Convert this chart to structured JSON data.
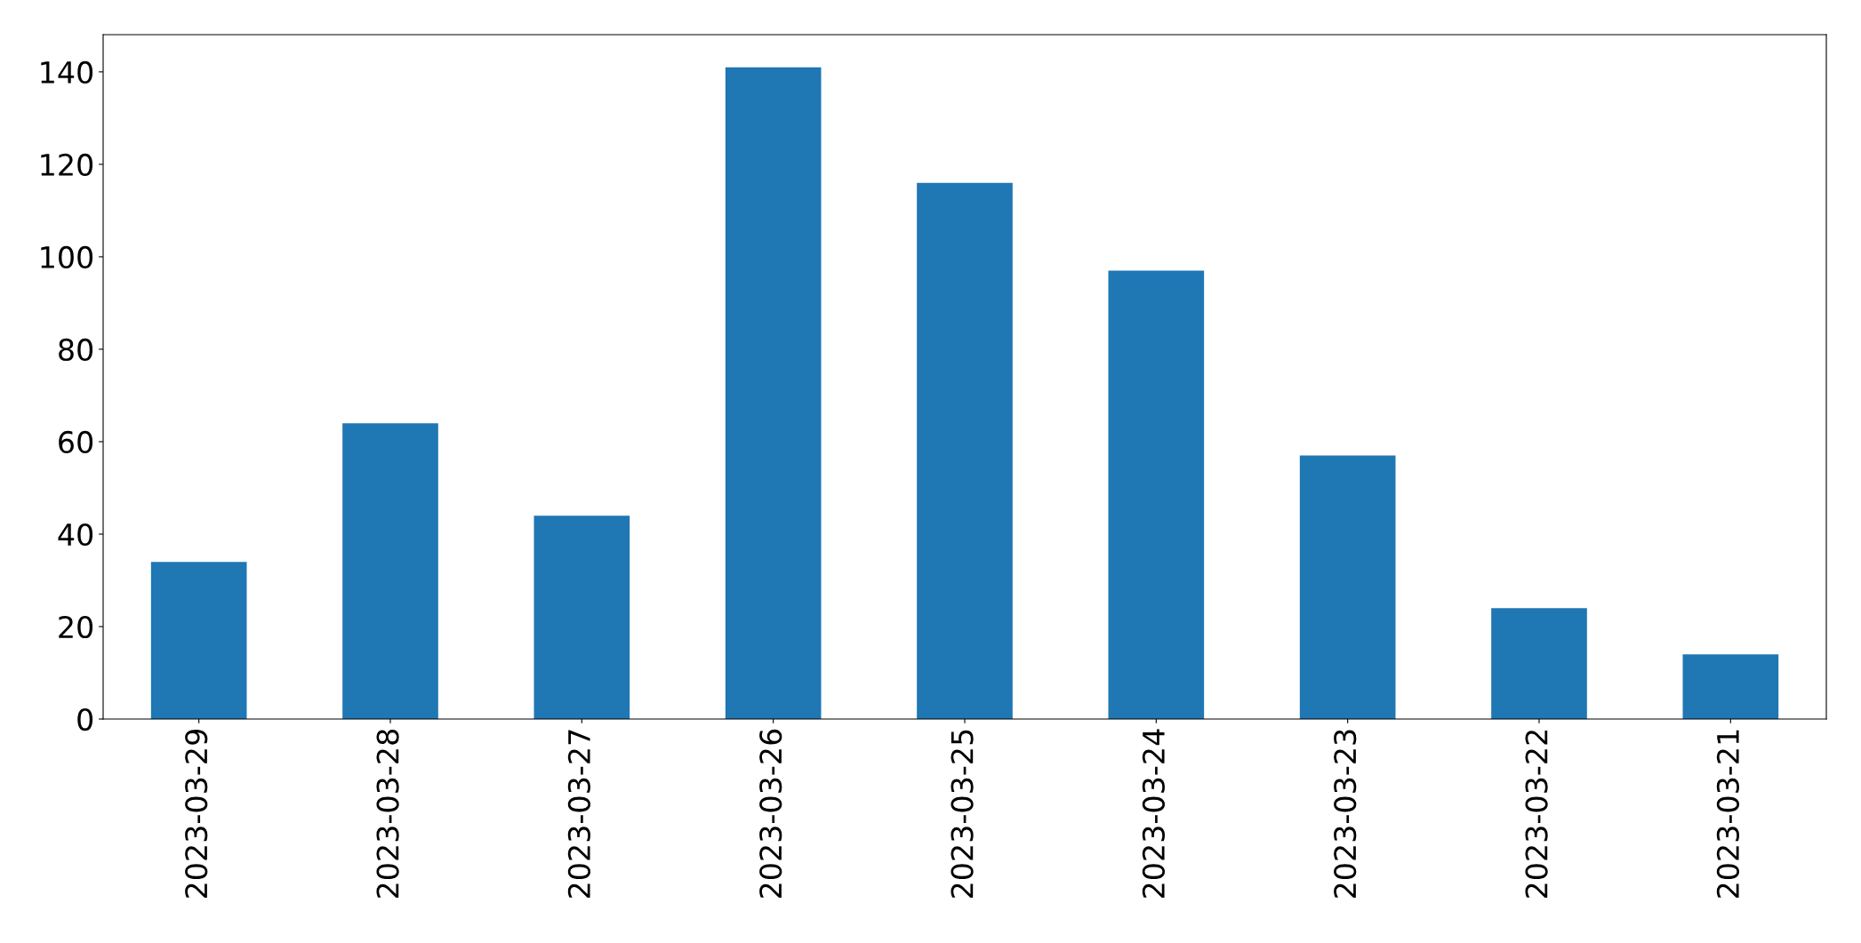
{
  "chart_data": {
    "type": "bar",
    "categories": [
      "2023-03-29",
      "2023-03-28",
      "2023-03-27",
      "2023-03-26",
      "2023-03-25",
      "2023-03-24",
      "2023-03-23",
      "2023-03-22",
      "2023-03-21"
    ],
    "values": [
      34,
      64,
      44,
      141,
      116,
      97,
      57,
      24,
      14
    ],
    "color": "#1f77b4",
    "ylim": [
      0,
      148.05
    ],
    "yticks": [
      0,
      20,
      40,
      60,
      80,
      100,
      120,
      140
    ],
    "grid": false,
    "legend": false
  }
}
